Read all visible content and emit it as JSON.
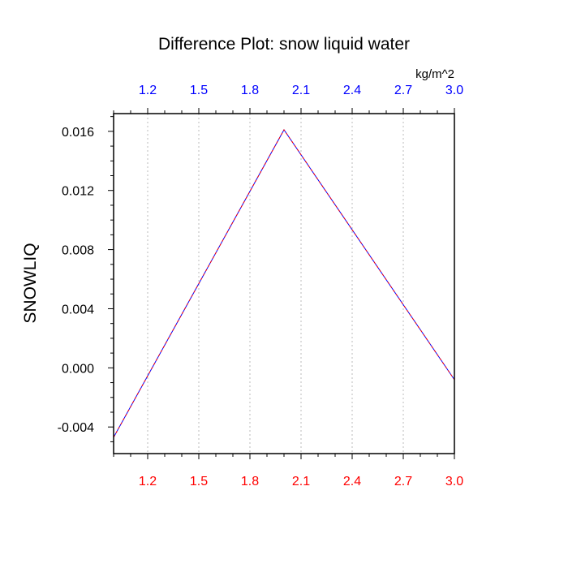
{
  "chart_data": {
    "type": "line",
    "title": "Difference Plot: snow liquid water",
    "ylabel": "SNOWLIQ",
    "xlabel": "",
    "top_axis_units": "kg/m^2",
    "xlim": [
      1.0,
      3.0
    ],
    "ylim": [
      -0.0058,
      0.0172
    ],
    "x_ticks": [
      1.2,
      1.5,
      1.8,
      2.1,
      2.4,
      2.7,
      3.0
    ],
    "x_tick_labels": [
      "1.2",
      "1.5",
      "1.8",
      "2.1",
      "2.4",
      "2.7",
      "3.0"
    ],
    "y_ticks": [
      -0.004,
      0.0,
      0.004,
      0.008,
      0.012,
      0.016
    ],
    "y_tick_labels": [
      "-0.004",
      "0.000",
      "0.004",
      "0.008",
      "0.012",
      "0.016"
    ],
    "grid": {
      "x": true,
      "y": false,
      "style": "dotted"
    },
    "series": [
      {
        "x": [
          1.0,
          2.0,
          3.0
        ],
        "y": [
          -0.0047,
          0.0161,
          -0.0008
        ],
        "colors": [
          "#0000ff",
          "#ff0000"
        ],
        "style": "dashed"
      }
    ],
    "colors": {
      "bottom_tick_labels": "#ff0000",
      "top_tick_labels": "#0000ff",
      "axes": "#000000",
      "grid": "#bbbbbb"
    }
  }
}
